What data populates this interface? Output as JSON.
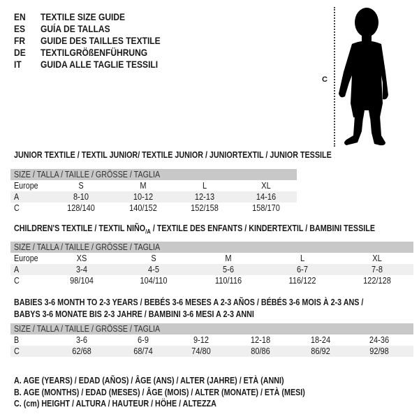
{
  "languages": [
    {
      "code": "EN",
      "text": "TEXTILE SIZE GUIDE"
    },
    {
      "code": "ES",
      "text": "GUÍA DE TALLAS"
    },
    {
      "code": "FR",
      "text": "GUIDE DES TAILLES TEXTILE"
    },
    {
      "code": "DE",
      "text": "TEXTILGRÖßENFÜHRUNG"
    },
    {
      "code": "IT",
      "text": "GUIDA ALLE TAGLIE TESSILI"
    }
  ],
  "figure": {
    "measure_label": "C",
    "icon": "child-silhouette-icon"
  },
  "junior": {
    "title": "JUNIOR TEXTILE / TEXTIL JUNIOR/ TEXTILE JUNIOR / JUNIORTEXTIL / JUNIOR TESSILE",
    "header": "SIZE / TALLA / TAILLE / GRÖSSE / TAGLIA",
    "rows": [
      {
        "label": "Europe",
        "values": [
          "S",
          "M",
          "L",
          "XL"
        ]
      },
      {
        "label": "A",
        "values": [
          "8-10",
          "10-12",
          "12-13",
          "14-16"
        ]
      },
      {
        "label": "C",
        "values": [
          "128/140",
          "140/152",
          "152/158",
          "158/170"
        ]
      }
    ]
  },
  "children": {
    "title": "CHILDREN'S TEXTILE / TEXTIL NIÑO",
    "title_sub": "/A",
    "title_rest": " / TEXTILE DES ENFANTS / KINDERTEXTIL / BAMBINI TESSILE",
    "header": "SIZE / TALLA / TAILLE / GRÖSSE / TAGLIA",
    "rows": [
      {
        "label": "Europe",
        "values": [
          "XS",
          "S",
          "M",
          "L",
          "XL"
        ]
      },
      {
        "label": "A",
        "values": [
          "3-4",
          "4-5",
          "5-6",
          "6-7",
          "7-8"
        ]
      },
      {
        "label": "C",
        "values": [
          "98/104",
          "104/110",
          "110/116",
          "116/122",
          "122/128"
        ]
      }
    ]
  },
  "babies": {
    "title_line1": "BABIES 3-6 MONTH TO 2-3 YEARS / BEBÉS 3-6 MESES A 2-3 AÑOS / BÉBÉS 3-6 MOIS À 2-3 ANS /",
    "title_line2": "BABYS 3-6 MONATE BIS 2-3 JAHRE / BAMBINI 3-6 MESI A 2-3 ANNI",
    "header": "SIZE / TALLA / TAILLE / GRÖSSE / TAGLIA",
    "rows": [
      {
        "label": "B",
        "values": [
          "3-6",
          "6-9",
          "9-12",
          "12-18",
          "18-24",
          "24-36"
        ]
      },
      {
        "label": "C",
        "values": [
          "62/68",
          "68/74",
          "74/80",
          "80/86",
          "86/92",
          "92/98"
        ]
      }
    ]
  },
  "legend": [
    "A. AGE (YEARS) / EDAD (AÑOS) / ÂGE (ANS) / ALTER (JAHRE) / ETÀ (ANNI)",
    "B. AGE (MONTHS) / EDAD (MESES) / ÂGE (MOIS) / ALTER (MONATE) / ETÀ (MESI)",
    "C. (cm) HEIGHT / ALTURA / HAUTEUR / HÖHE / ALTEZZA"
  ]
}
